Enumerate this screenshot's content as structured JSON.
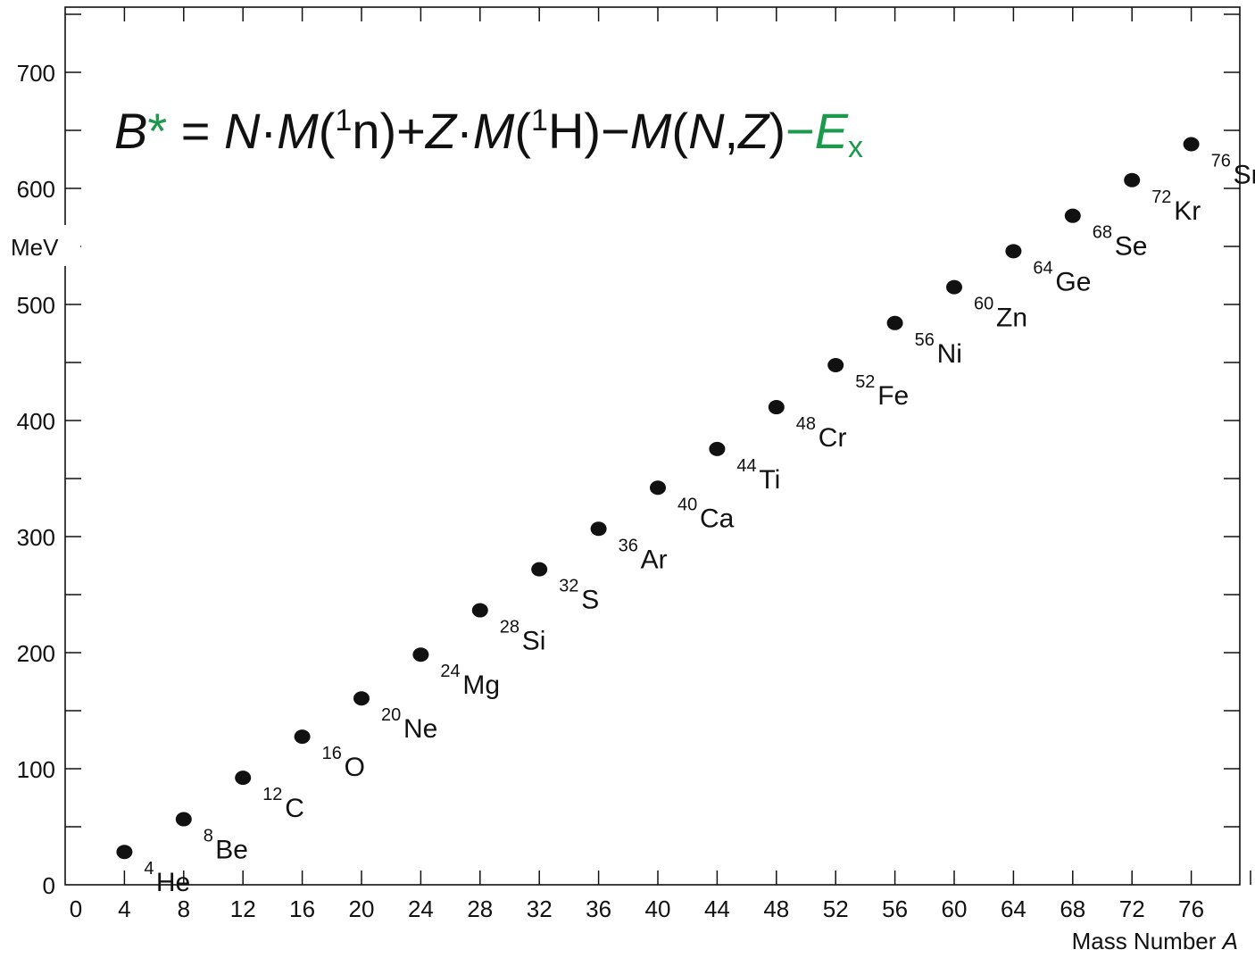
{
  "chart_data": {
    "type": "scatter",
    "title": "",
    "xlabel": "Mass Number",
    "xlabel_italic": "A",
    "ylabel": "MeV",
    "xlim": [
      0,
      80
    ],
    "ylim": [
      0,
      750
    ],
    "x_ticks": [
      0,
      4,
      8,
      12,
      16,
      20,
      24,
      28,
      32,
      36,
      40,
      44,
      48,
      52,
      56,
      60,
      64,
      68,
      72,
      76
    ],
    "y_ticks": [
      0,
      100,
      200,
      300,
      400,
      500,
      600,
      700
    ],
    "grid": false,
    "point_color": "#111111",
    "accent_color": "#1a9a4a",
    "formula": {
      "B": "B",
      "star": "*",
      "eq": " = ",
      "N1": "N",
      "dot1": "·",
      "M1": "M",
      "open1": "(",
      "sup1": "1",
      "n": "n",
      "close1": ")",
      "plus": "+",
      "Z1": "Z",
      "dot2": "·",
      "M2": "M",
      "open2": "(",
      "sup2": "1",
      "H": "H",
      "close2": ")",
      "minus1": "−",
      "M3": "M",
      "open3": "(",
      "N2": "N",
      "comma": ",",
      "Z2": "Z",
      "close3": ")",
      "minus2": "−",
      "E": "E",
      "x": "x"
    },
    "points": [
      {
        "mass": "4",
        "symbol": "He",
        "x": 4,
        "y": 28.3
      },
      {
        "mass": "8",
        "symbol": "Be",
        "x": 8,
        "y": 56.5
      },
      {
        "mass": "12",
        "symbol": "C",
        "x": 12,
        "y": 92.2
      },
      {
        "mass": "16",
        "symbol": "O",
        "x": 16,
        "y": 127.6
      },
      {
        "mass": "20",
        "symbol": "Ne",
        "x": 20,
        "y": 160.6
      },
      {
        "mass": "24",
        "symbol": "Mg",
        "x": 24,
        "y": 198.3
      },
      {
        "mass": "28",
        "symbol": "Si",
        "x": 28,
        "y": 236.5
      },
      {
        "mass": "32",
        "symbol": "S",
        "x": 32,
        "y": 271.8
      },
      {
        "mass": "36",
        "symbol": "Ar",
        "x": 36,
        "y": 306.7
      },
      {
        "mass": "40",
        "symbol": "Ca",
        "x": 40,
        "y": 342.1
      },
      {
        "mass": "44",
        "symbol": "Ti",
        "x": 44,
        "y": 375.5
      },
      {
        "mass": "48",
        "symbol": "Cr",
        "x": 48,
        "y": 411.5
      },
      {
        "mass": "52",
        "symbol": "Fe",
        "x": 52,
        "y": 447.7
      },
      {
        "mass": "56",
        "symbol": "Ni",
        "x": 56,
        "y": 484.0
      },
      {
        "mass": "60",
        "symbol": "Zn",
        "x": 60,
        "y": 514.9
      },
      {
        "mass": "64",
        "symbol": "Ge",
        "x": 64,
        "y": 545.9
      },
      {
        "mass": "68",
        "symbol": "Se",
        "x": 68,
        "y": 576.4
      },
      {
        "mass": "72",
        "symbol": "Kr",
        "x": 72,
        "y": 607.1
      },
      {
        "mass": "76",
        "symbol": "Sr",
        "x": 76,
        "y": 638.1
      }
    ]
  }
}
